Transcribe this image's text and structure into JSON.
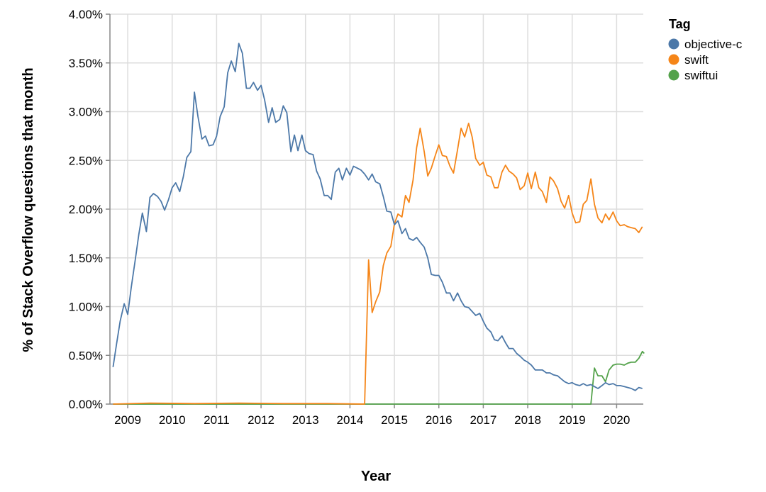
{
  "chart_data": {
    "type": "line",
    "xlabel": "Year",
    "ylabel": "% of Stack Overflow questions that month",
    "xlim": [
      2008.6,
      2020.6
    ],
    "ylim": [
      0,
      4
    ],
    "y_ticks": [
      "0.00%",
      "0.50%",
      "1.00%",
      "1.50%",
      "2.00%",
      "2.50%",
      "3.00%",
      "3.50%",
      "4.00%"
    ],
    "x_ticks": [
      "2009",
      "2010",
      "2011",
      "2012",
      "2013",
      "2014",
      "2015",
      "2016",
      "2017",
      "2018",
      "2019",
      "2020"
    ],
    "grid": true,
    "legend": {
      "title": "Tag",
      "placement": "top-right",
      "entries": [
        "objective-c",
        "swift",
        "swiftui"
      ]
    },
    "series": [
      {
        "name": "objective-c",
        "color": "#4c78a8",
        "points": [
          [
            2008.67,
            0.38
          ],
          [
            2008.75,
            0.62
          ],
          [
            2008.83,
            0.85
          ],
          [
            2008.92,
            1.03
          ],
          [
            2009.0,
            0.92
          ],
          [
            2009.08,
            1.2
          ],
          [
            2009.17,
            1.48
          ],
          [
            2009.25,
            1.74
          ],
          [
            2009.33,
            1.96
          ],
          [
            2009.42,
            1.77
          ],
          [
            2009.5,
            2.12
          ],
          [
            2009.58,
            2.16
          ],
          [
            2009.67,
            2.13
          ],
          [
            2009.75,
            2.08
          ],
          [
            2009.83,
            1.99
          ],
          [
            2009.92,
            2.1
          ],
          [
            2010.0,
            2.22
          ],
          [
            2010.08,
            2.27
          ],
          [
            2010.17,
            2.18
          ],
          [
            2010.25,
            2.33
          ],
          [
            2010.33,
            2.53
          ],
          [
            2010.42,
            2.59
          ],
          [
            2010.5,
            3.2
          ],
          [
            2010.58,
            2.95
          ],
          [
            2010.67,
            2.72
          ],
          [
            2010.75,
            2.75
          ],
          [
            2010.83,
            2.65
          ],
          [
            2010.92,
            2.66
          ],
          [
            2011.0,
            2.75
          ],
          [
            2011.08,
            2.95
          ],
          [
            2011.17,
            3.05
          ],
          [
            2011.25,
            3.4
          ],
          [
            2011.33,
            3.52
          ],
          [
            2011.42,
            3.41
          ],
          [
            2011.5,
            3.7
          ],
          [
            2011.58,
            3.6
          ],
          [
            2011.67,
            3.24
          ],
          [
            2011.75,
            3.24
          ],
          [
            2011.83,
            3.3
          ],
          [
            2011.92,
            3.22
          ],
          [
            2012.0,
            3.27
          ],
          [
            2012.08,
            3.12
          ],
          [
            2012.17,
            2.89
          ],
          [
            2012.25,
            3.04
          ],
          [
            2012.33,
            2.89
          ],
          [
            2012.42,
            2.92
          ],
          [
            2012.5,
            3.06
          ],
          [
            2012.58,
            2.99
          ],
          [
            2012.67,
            2.59
          ],
          [
            2012.75,
            2.76
          ],
          [
            2012.83,
            2.6
          ],
          [
            2012.92,
            2.76
          ],
          [
            2013.0,
            2.6
          ],
          [
            2013.08,
            2.57
          ],
          [
            2013.17,
            2.56
          ],
          [
            2013.25,
            2.39
          ],
          [
            2013.33,
            2.31
          ],
          [
            2013.42,
            2.14
          ],
          [
            2013.5,
            2.14
          ],
          [
            2013.58,
            2.1
          ],
          [
            2013.67,
            2.38
          ],
          [
            2013.75,
            2.42
          ],
          [
            2013.83,
            2.3
          ],
          [
            2013.92,
            2.42
          ],
          [
            2014.0,
            2.35
          ],
          [
            2014.08,
            2.44
          ],
          [
            2014.17,
            2.42
          ],
          [
            2014.25,
            2.4
          ],
          [
            2014.33,
            2.36
          ],
          [
            2014.42,
            2.3
          ],
          [
            2014.5,
            2.36
          ],
          [
            2014.58,
            2.28
          ],
          [
            2014.67,
            2.26
          ],
          [
            2014.75,
            2.13
          ],
          [
            2014.83,
            1.98
          ],
          [
            2014.92,
            1.97
          ],
          [
            2015.0,
            1.84
          ],
          [
            2015.08,
            1.88
          ],
          [
            2015.17,
            1.75
          ],
          [
            2015.25,
            1.8
          ],
          [
            2015.33,
            1.7
          ],
          [
            2015.42,
            1.68
          ],
          [
            2015.5,
            1.71
          ],
          [
            2015.58,
            1.66
          ],
          [
            2015.67,
            1.61
          ],
          [
            2015.75,
            1.5
          ],
          [
            2015.83,
            1.33
          ],
          [
            2015.92,
            1.32
          ],
          [
            2016.0,
            1.32
          ],
          [
            2016.08,
            1.25
          ],
          [
            2016.17,
            1.14
          ],
          [
            2016.25,
            1.14
          ],
          [
            2016.33,
            1.06
          ],
          [
            2016.42,
            1.14
          ],
          [
            2016.5,
            1.06
          ],
          [
            2016.58,
            1.0
          ],
          [
            2016.67,
            0.99
          ],
          [
            2016.75,
            0.95
          ],
          [
            2016.83,
            0.91
          ],
          [
            2016.92,
            0.93
          ],
          [
            2017.0,
            0.85
          ],
          [
            2017.08,
            0.78
          ],
          [
            2017.17,
            0.74
          ],
          [
            2017.25,
            0.66
          ],
          [
            2017.33,
            0.65
          ],
          [
            2017.42,
            0.7
          ],
          [
            2017.5,
            0.63
          ],
          [
            2017.58,
            0.57
          ],
          [
            2017.67,
            0.57
          ],
          [
            2017.75,
            0.52
          ],
          [
            2017.83,
            0.49
          ],
          [
            2017.92,
            0.45
          ],
          [
            2018.0,
            0.43
          ],
          [
            2018.08,
            0.4
          ],
          [
            2018.17,
            0.35
          ],
          [
            2018.25,
            0.35
          ],
          [
            2018.33,
            0.35
          ],
          [
            2018.42,
            0.32
          ],
          [
            2018.5,
            0.32
          ],
          [
            2018.58,
            0.3
          ],
          [
            2018.67,
            0.29
          ],
          [
            2018.75,
            0.26
          ],
          [
            2018.83,
            0.23
          ],
          [
            2018.92,
            0.21
          ],
          [
            2019.0,
            0.22
          ],
          [
            2019.08,
            0.2
          ],
          [
            2019.17,
            0.19
          ],
          [
            2019.25,
            0.21
          ],
          [
            2019.33,
            0.19
          ],
          [
            2019.42,
            0.2
          ],
          [
            2019.5,
            0.18
          ],
          [
            2019.58,
            0.16
          ],
          [
            2019.67,
            0.19
          ],
          [
            2019.75,
            0.22
          ],
          [
            2019.83,
            0.2
          ],
          [
            2019.92,
            0.21
          ],
          [
            2020.0,
            0.19
          ],
          [
            2020.08,
            0.19
          ],
          [
            2020.17,
            0.18
          ],
          [
            2020.25,
            0.17
          ],
          [
            2020.33,
            0.16
          ],
          [
            2020.42,
            0.14
          ],
          [
            2020.5,
            0.17
          ],
          [
            2020.58,
            0.16
          ]
        ]
      },
      {
        "name": "swift",
        "color": "#f58518",
        "points": [
          [
            2008.67,
            0.0
          ],
          [
            2009.5,
            0.01
          ],
          [
            2010.5,
            0.005
          ],
          [
            2011.5,
            0.01
          ],
          [
            2012.5,
            0.005
          ],
          [
            2013.5,
            0.005
          ],
          [
            2014.33,
            0.0
          ],
          [
            2014.42,
            1.48
          ],
          [
            2014.5,
            0.94
          ],
          [
            2014.58,
            1.05
          ],
          [
            2014.67,
            1.15
          ],
          [
            2014.75,
            1.42
          ],
          [
            2014.83,
            1.55
          ],
          [
            2014.92,
            1.62
          ],
          [
            2015.0,
            1.85
          ],
          [
            2015.08,
            1.95
          ],
          [
            2015.17,
            1.92
          ],
          [
            2015.25,
            2.14
          ],
          [
            2015.33,
            2.07
          ],
          [
            2015.42,
            2.3
          ],
          [
            2015.5,
            2.63
          ],
          [
            2015.58,
            2.83
          ],
          [
            2015.67,
            2.59
          ],
          [
            2015.75,
            2.34
          ],
          [
            2015.83,
            2.42
          ],
          [
            2015.92,
            2.55
          ],
          [
            2016.0,
            2.66
          ],
          [
            2016.08,
            2.55
          ],
          [
            2016.17,
            2.54
          ],
          [
            2016.25,
            2.44
          ],
          [
            2016.33,
            2.37
          ],
          [
            2016.42,
            2.61
          ],
          [
            2016.5,
            2.83
          ],
          [
            2016.58,
            2.74
          ],
          [
            2016.67,
            2.88
          ],
          [
            2016.75,
            2.74
          ],
          [
            2016.83,
            2.52
          ],
          [
            2016.92,
            2.45
          ],
          [
            2017.0,
            2.48
          ],
          [
            2017.08,
            2.35
          ],
          [
            2017.17,
            2.33
          ],
          [
            2017.25,
            2.22
          ],
          [
            2017.33,
            2.22
          ],
          [
            2017.42,
            2.38
          ],
          [
            2017.5,
            2.45
          ],
          [
            2017.58,
            2.39
          ],
          [
            2017.67,
            2.36
          ],
          [
            2017.75,
            2.32
          ],
          [
            2017.83,
            2.2
          ],
          [
            2017.92,
            2.24
          ],
          [
            2018.0,
            2.37
          ],
          [
            2018.08,
            2.21
          ],
          [
            2018.17,
            2.38
          ],
          [
            2018.25,
            2.22
          ],
          [
            2018.33,
            2.18
          ],
          [
            2018.42,
            2.07
          ],
          [
            2018.5,
            2.33
          ],
          [
            2018.58,
            2.29
          ],
          [
            2018.67,
            2.21
          ],
          [
            2018.75,
            2.08
          ],
          [
            2018.83,
            2.01
          ],
          [
            2018.92,
            2.14
          ],
          [
            2019.0,
            1.96
          ],
          [
            2019.08,
            1.86
          ],
          [
            2019.17,
            1.87
          ],
          [
            2019.25,
            2.05
          ],
          [
            2019.33,
            2.09
          ],
          [
            2019.42,
            2.31
          ],
          [
            2019.5,
            2.05
          ],
          [
            2019.58,
            1.91
          ],
          [
            2019.67,
            1.86
          ],
          [
            2019.75,
            1.95
          ],
          [
            2019.83,
            1.89
          ],
          [
            2019.92,
            1.97
          ],
          [
            2020.0,
            1.88
          ],
          [
            2020.08,
            1.83
          ],
          [
            2020.17,
            1.84
          ],
          [
            2020.25,
            1.82
          ],
          [
            2020.33,
            1.81
          ],
          [
            2020.42,
            1.8
          ],
          [
            2020.5,
            1.76
          ],
          [
            2020.58,
            1.82
          ]
        ]
      },
      {
        "name": "swiftui",
        "color": "#54a24b",
        "points": [
          [
            2008.67,
            0.0
          ],
          [
            2019.42,
            0.0
          ],
          [
            2019.5,
            0.37
          ],
          [
            2019.58,
            0.29
          ],
          [
            2019.67,
            0.29
          ],
          [
            2019.75,
            0.23
          ],
          [
            2019.83,
            0.35
          ],
          [
            2019.92,
            0.4
          ],
          [
            2020.0,
            0.41
          ],
          [
            2020.08,
            0.41
          ],
          [
            2020.17,
            0.4
          ],
          [
            2020.25,
            0.42
          ],
          [
            2020.33,
            0.43
          ],
          [
            2020.42,
            0.43
          ],
          [
            2020.5,
            0.47
          ],
          [
            2020.58,
            0.54
          ],
          [
            2020.62,
            0.52
          ]
        ]
      }
    ]
  }
}
